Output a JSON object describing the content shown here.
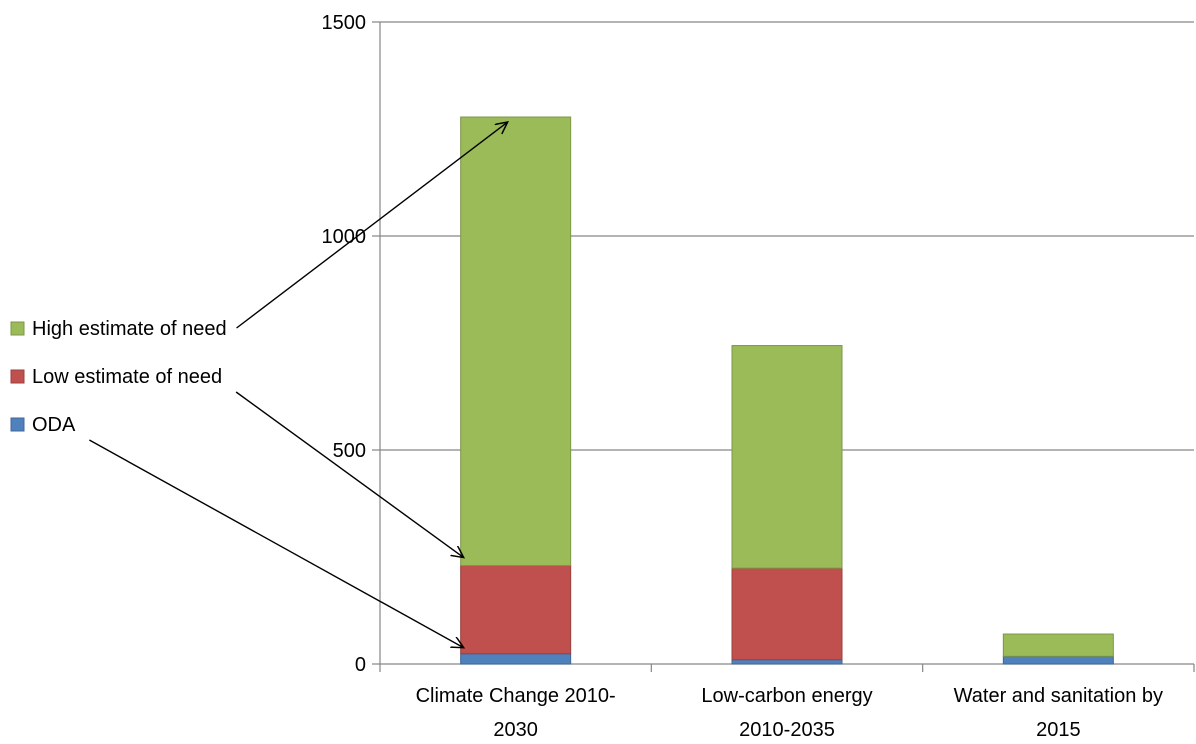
{
  "chart_data": {
    "type": "bar",
    "stacked": true,
    "title": "",
    "xlabel": "",
    "ylabel": "",
    "categories": [
      [
        "Climate Change 2010-",
        "2030"
      ],
      [
        "Low-carbon energy",
        "2010-2035"
      ],
      [
        "Water and sanitation by",
        "2015"
      ]
    ],
    "series": [
      {
        "name": "ODA",
        "color": "#4f81bd",
        "values": [
          24,
          10,
          18
        ]
      },
      {
        "name": "Low estimate of need",
        "color": "#c0504d",
        "values": [
          206,
          214,
          0
        ]
      },
      {
        "name": "High estimate of need",
        "color": "#9bbb59",
        "values": [
          1048,
          520,
          52
        ]
      }
    ],
    "ylim": [
      0,
      1500
    ],
    "yticks": [
      0,
      500,
      1000,
      1500
    ],
    "grid": true,
    "legend": {
      "placement": "left",
      "order": [
        "High estimate of need",
        "Low estimate of need",
        "ODA"
      ]
    },
    "annotations": [
      "arrows from legend entries to their segments on the first bar"
    ]
  }
}
